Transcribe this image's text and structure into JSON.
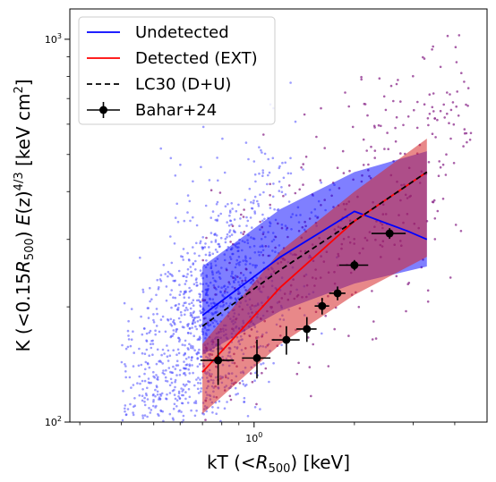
{
  "chart_data": {
    "type": "scatter",
    "xlabel": "kT (<R500) [keV]",
    "ylabel": "K (<0.15R500) E(z)^(4/3) [keV cm^2]",
    "x_scale": "log",
    "y_scale": "log",
    "xlim": [
      0.28,
      5.0
    ],
    "ylim": [
      100,
      1200
    ],
    "x_ticks": [
      {
        "value": 1,
        "label": "10^0"
      }
    ],
    "y_ticks": [
      {
        "value": 100,
        "label": "10^2"
      },
      {
        "value": 1000,
        "label": "10^3"
      }
    ],
    "grid": false,
    "legend_position": "top-left",
    "legend": [
      {
        "label": "Undetected",
        "style": "line",
        "color": "#0000ff"
      },
      {
        "label": "Detected (EXT)",
        "style": "line",
        "color": "#ff0000"
      },
      {
        "label": "LC30 (D+U)",
        "style": "dashed",
        "color": "#000000"
      },
      {
        "label": "Bahar+24",
        "style": "errorbar",
        "color": "#000000"
      }
    ],
    "bands": [
      {
        "series": "Undetected",
        "color": "#0000ff",
        "opacity": 0.5,
        "x": [
          0.7,
          1.2,
          2.0,
          3.3
        ],
        "low": [
          150,
          195,
          230,
          255
        ],
        "high": [
          255,
          360,
          450,
          510
        ]
      },
      {
        "series": "Detected (EXT)",
        "color": "#d62728",
        "opacity": 0.55,
        "x": [
          0.7,
          1.2,
          2.0,
          3.3
        ],
        "low": [
          105,
          160,
          215,
          270
        ],
        "high": [
          160,
          280,
          400,
          550
        ]
      }
    ],
    "series": [
      {
        "name": "Undetected",
        "type": "line",
        "color": "#0000ff",
        "x": [
          0.7,
          1.2,
          2.0,
          2.9,
          3.3
        ],
        "y": [
          190,
          270,
          355,
          315,
          300
        ]
      },
      {
        "name": "Detected (EXT)",
        "type": "line",
        "color": "#ff0000",
        "x": [
          0.7,
          1.2,
          2.0,
          3.3
        ],
        "y": [
          135,
          225,
          335,
          450
        ]
      },
      {
        "name": "LC30 (D+U)",
        "type": "dashed",
        "color": "#000000",
        "x": [
          0.7,
          1.2,
          2.0,
          3.3
        ],
        "y": [
          178,
          250,
          335,
          450
        ]
      },
      {
        "name": "Bahar+24",
        "type": "errorbar",
        "color": "#000000",
        "points": [
          {
            "x": 0.78,
            "y": 145,
            "xerr": [
              0.09,
              0.09
            ],
            "yerr": [
              20,
              20
            ]
          },
          {
            "x": 1.02,
            "y": 147,
            "xerr": [
              0.1,
              0.1
            ],
            "yerr": [
              17,
              17
            ]
          },
          {
            "x": 1.25,
            "y": 164,
            "xerr": [
              0.12,
              0.12
            ],
            "yerr": [
              14,
              14
            ]
          },
          {
            "x": 1.44,
            "y": 175,
            "xerr": [
              0.1,
              0.1
            ],
            "yerr": [
              13,
              13
            ]
          },
          {
            "x": 1.6,
            "y": 201,
            "xerr": [
              0.08,
              0.08
            ],
            "yerr": [
              10,
              10
            ]
          },
          {
            "x": 1.78,
            "y": 217,
            "xerr": [
              0.1,
              0.1
            ],
            "yerr": [
              9,
              9
            ]
          },
          {
            "x": 2.0,
            "y": 257,
            "xerr": [
              0.2,
              0.2
            ],
            "yerr": [
              8,
              8
            ]
          },
          {
            "x": 2.55,
            "y": 311,
            "xerr": [
              0.3,
              0.3
            ],
            "yerr": [
              10,
              10
            ]
          }
        ]
      }
    ],
    "scatter_groups": [
      {
        "name": "undetected-points",
        "color": "#4b4bff",
        "count": 1350,
        "x_range": [
          0.4,
          2.3
        ],
        "y_range": [
          100,
          950
        ]
      },
      {
        "name": "detected-points",
        "color": "#8b2a8b",
        "count": 430,
        "x_range": [
          0.7,
          4.5
        ],
        "y_range": [
          100,
          1050
        ]
      }
    ]
  }
}
